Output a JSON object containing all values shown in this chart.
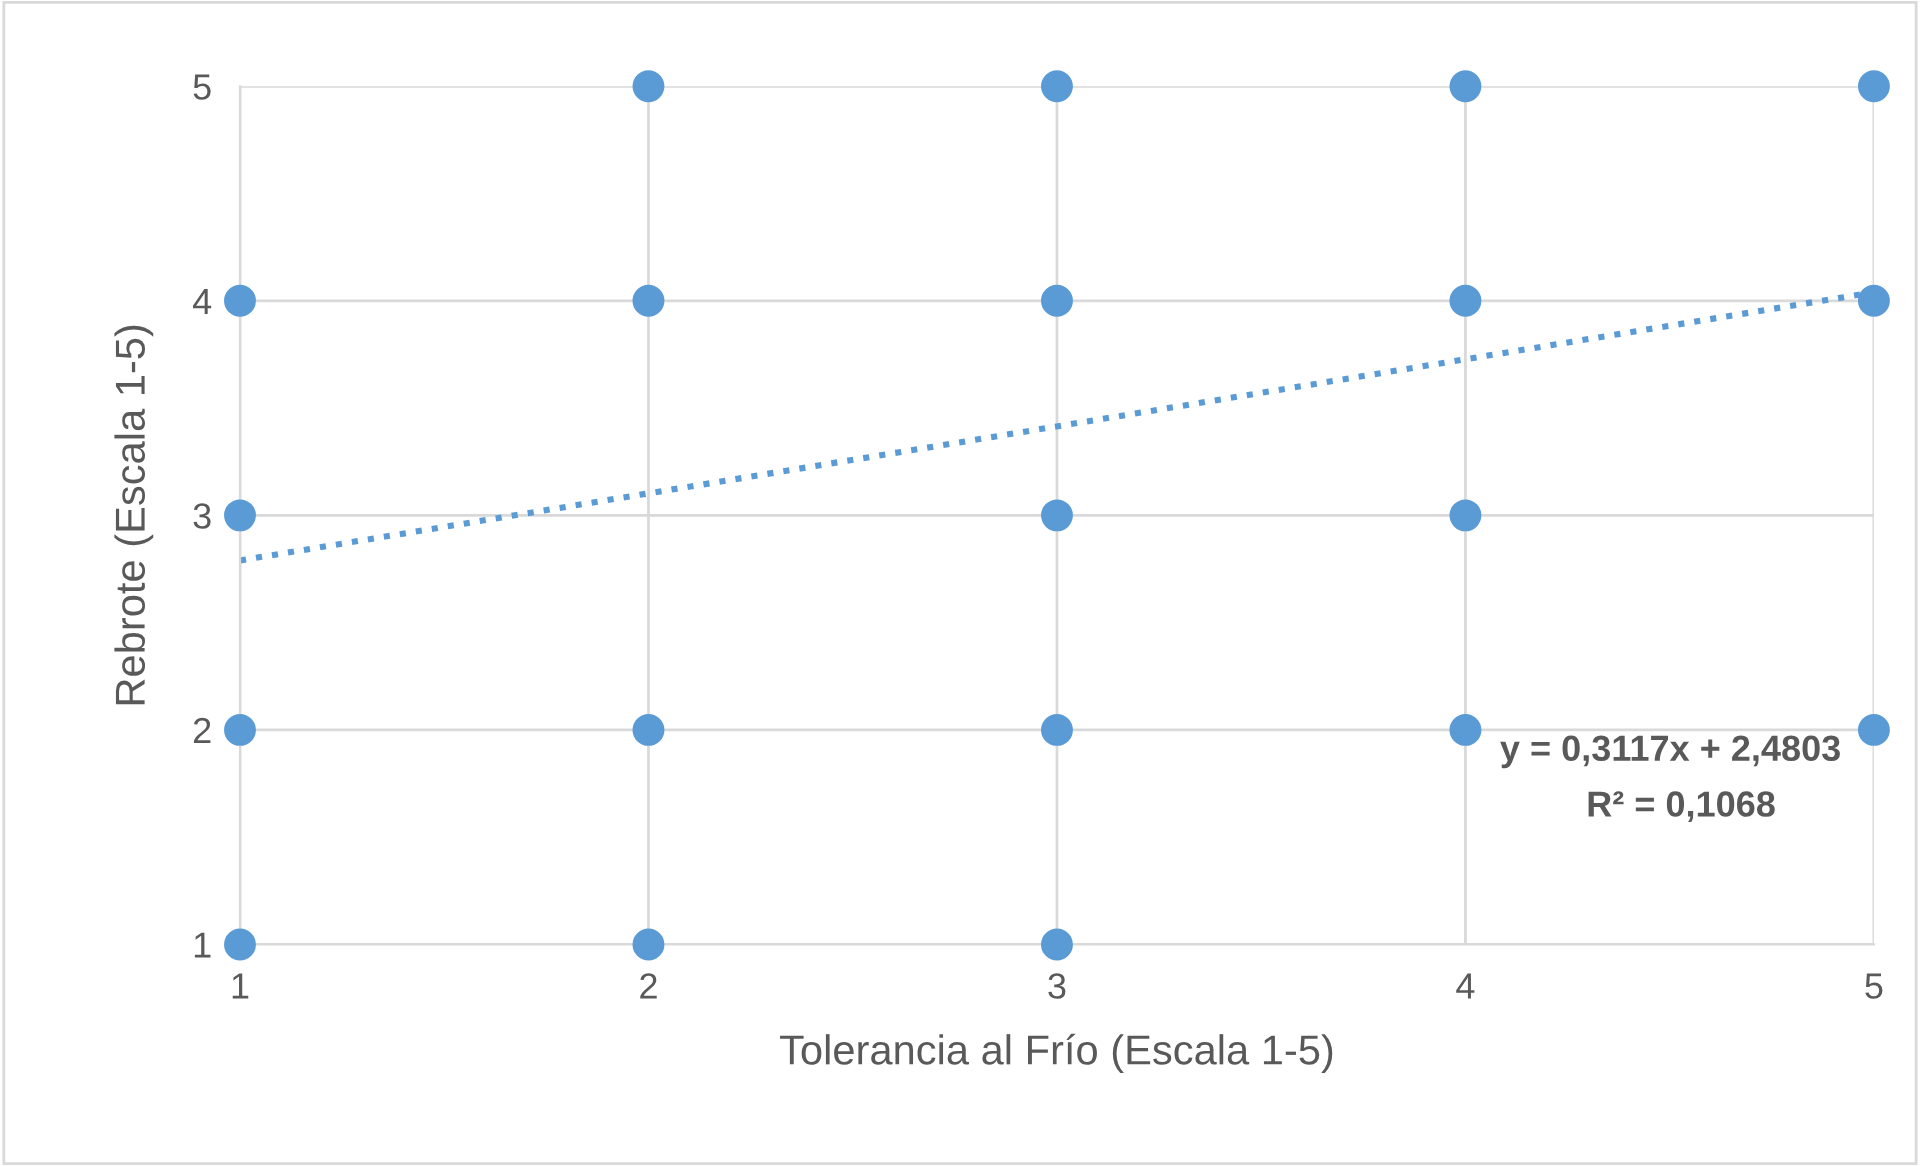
{
  "chart_data": {
    "type": "scatter",
    "xlabel": "Tolerancia al Frío (Escala 1-5)",
    "ylabel": "Rebrote (Escala 1-5)",
    "xlim": [
      1,
      5
    ],
    "ylim": [
      1,
      5
    ],
    "xticks": [
      1,
      2,
      3,
      4,
      5
    ],
    "yticks": [
      1,
      2,
      3,
      4,
      5
    ],
    "grid": true,
    "marker": "circle",
    "series": [
      {
        "color": "#5b9bd5",
        "x": [
          1,
          1,
          1,
          1,
          2,
          2,
          2,
          2,
          3,
          3,
          3,
          3,
          3,
          4,
          4,
          4,
          4,
          5,
          5,
          5
        ],
        "values": [
          1,
          2,
          3,
          4,
          1,
          2,
          4,
          5,
          1,
          2,
          3,
          4,
          5,
          2,
          3,
          4,
          5,
          2,
          4,
          5
        ]
      },
      {
        "type": "line",
        "color": "#5b9bd5",
        "line_style": "dotted",
        "marker": "none",
        "x": [
          1,
          5
        ],
        "values": [
          2.79,
          4.04
        ]
      }
    ],
    "annotations": [
      "y = 0,3117x + 2,4803",
      "R² = 0,1068"
    ]
  }
}
